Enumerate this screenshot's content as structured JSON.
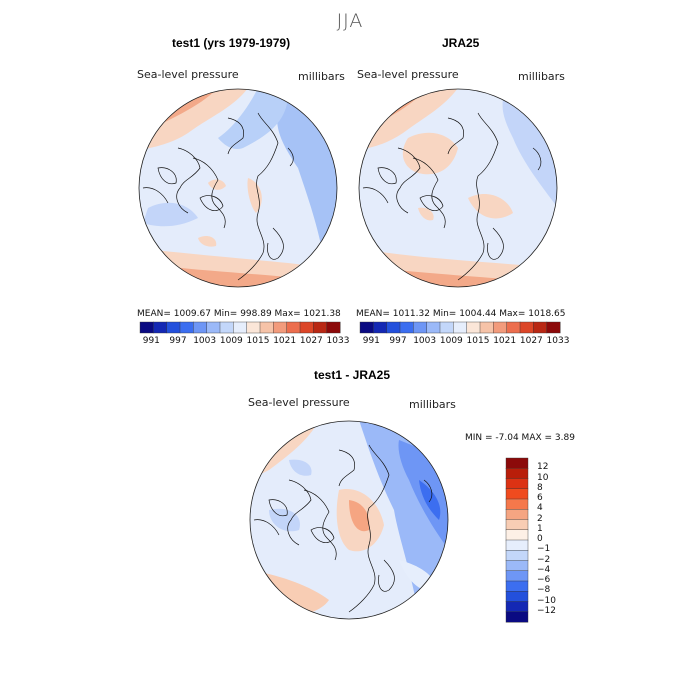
{
  "figure": {
    "title": "JJA"
  },
  "panels": [
    {
      "title": "test1 (yrs 1979-1979)",
      "variable": "Sea-level pressure",
      "units": "millibars",
      "stats": "MEAN= 1009.67   Min= 998.89   Max= 1021.38"
    },
    {
      "title": "JRA25",
      "variable": "Sea-level pressure",
      "units": "millibars",
      "stats": "MEAN= 1011.32   Min= 1004.44   Max= 1018.65"
    },
    {
      "title": "test1 - JRA25",
      "variable": "Sea-level pressure",
      "units": "millibars",
      "stats": "MIN =   -7.04 MAX =    3.89"
    }
  ],
  "colorbar_horizontal": {
    "tick_labels": [
      "991",
      "997",
      "1003",
      "1009",
      "1015",
      "1021",
      "1027",
      "1033"
    ],
    "colors": [
      "#0a0a82",
      "#1428b4",
      "#2350dc",
      "#3c6ef0",
      "#6e96f5",
      "#9bb9f8",
      "#c3d7fa",
      "#e6eefc",
      "#fbe6d8",
      "#f6c3a8",
      "#f29b7c",
      "#ec6e4e",
      "#dc4628",
      "#b92814",
      "#8c0a0a"
    ]
  },
  "colorbar_vertical": {
    "tick_labels": [
      "12",
      "10",
      "8",
      "6",
      "4",
      "2",
      "1",
      "0",
      "−1",
      "−2",
      "−4",
      "−6",
      "−8",
      "−10",
      "−12"
    ],
    "colors": [
      "#8c0a0a",
      "#b91e0a",
      "#dc3214",
      "#f04b1e",
      "#f5784b",
      "#f5a582",
      "#f8cdb4",
      "#fdf0e6",
      "#e6eefc",
      "#c3d7fa",
      "#9bb9f8",
      "#6e96f5",
      "#3c6ef0",
      "#2350dc",
      "#1428b4",
      "#0a0a82"
    ]
  }
}
